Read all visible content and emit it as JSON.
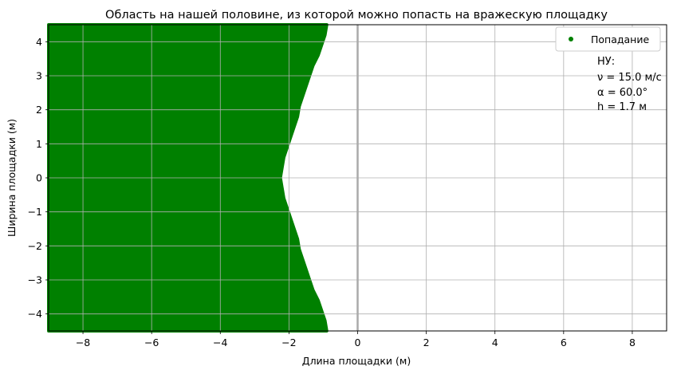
{
  "chart_data": {
    "type": "scatter",
    "title": "Область на нашей половине, из которой можно попасть на вражескую площадку",
    "xlabel": "Длина площадки (м)",
    "ylabel": "Ширина площадки (м)",
    "xlim": [
      -9,
      9
    ],
    "ylim": [
      -4.5,
      4.5
    ],
    "x_ticks": [
      -8,
      -6,
      -4,
      -2,
      0,
      2,
      4,
      6,
      8
    ],
    "x_tick_labels": [
      "−8",
      "−6",
      "−4",
      "−2",
      "0",
      "2",
      "4",
      "6",
      "8"
    ],
    "y_ticks": [
      4,
      3,
      2,
      1,
      0,
      -1,
      -2,
      -3,
      -4
    ],
    "y_tick_labels": [
      "4",
      "3",
      "2",
      "1",
      "0",
      "−1",
      "−2",
      "−3",
      "−4"
    ],
    "grid": true,
    "legend_position": "top-right",
    "series": [
      {
        "name": "Попадание",
        "color": "#008000",
        "marker": "circle",
        "region_x_min": -9.0,
        "boundary": [
          {
            "y": 4.5,
            "x_max": -0.9
          },
          {
            "y": 4.2,
            "x_max": -0.95
          },
          {
            "y": 3.9,
            "x_max": -1.05
          },
          {
            "y": 3.6,
            "x_max": -1.15
          },
          {
            "y": 3.3,
            "x_max": -1.3
          },
          {
            "y": 3.0,
            "x_max": -1.4
          },
          {
            "y": 2.7,
            "x_max": -1.5
          },
          {
            "y": 2.4,
            "x_max": -1.6
          },
          {
            "y": 2.1,
            "x_max": -1.7
          },
          {
            "y": 1.8,
            "x_max": -1.75
          },
          {
            "y": 1.5,
            "x_max": -1.85
          },
          {
            "y": 1.2,
            "x_max": -1.95
          },
          {
            "y": 0.9,
            "x_max": -2.05
          },
          {
            "y": 0.6,
            "x_max": -2.15
          },
          {
            "y": 0.3,
            "x_max": -2.2
          },
          {
            "y": 0.0,
            "x_max": -2.25
          },
          {
            "y": -0.3,
            "x_max": -2.2
          },
          {
            "y": -0.6,
            "x_max": -2.15
          },
          {
            "y": -0.9,
            "x_max": -2.05
          },
          {
            "y": -1.2,
            "x_max": -1.95
          },
          {
            "y": -1.5,
            "x_max": -1.85
          },
          {
            "y": -1.8,
            "x_max": -1.75
          },
          {
            "y": -2.1,
            "x_max": -1.7
          },
          {
            "y": -2.4,
            "x_max": -1.6
          },
          {
            "y": -2.7,
            "x_max": -1.5
          },
          {
            "y": -3.0,
            "x_max": -1.4
          },
          {
            "y": -3.3,
            "x_max": -1.3
          },
          {
            "y": -3.6,
            "x_max": -1.15
          },
          {
            "y": -3.9,
            "x_max": -1.05
          },
          {
            "y": -4.2,
            "x_max": -0.95
          },
          {
            "y": -4.5,
            "x_max": -0.9
          }
        ]
      }
    ],
    "vline": {
      "x": 0,
      "color": "#aaaaaa"
    },
    "annotation": [
      "НУ:",
      "ν = 15.0 м/с",
      "α = 60.0°",
      "h = 1.7 м"
    ]
  }
}
